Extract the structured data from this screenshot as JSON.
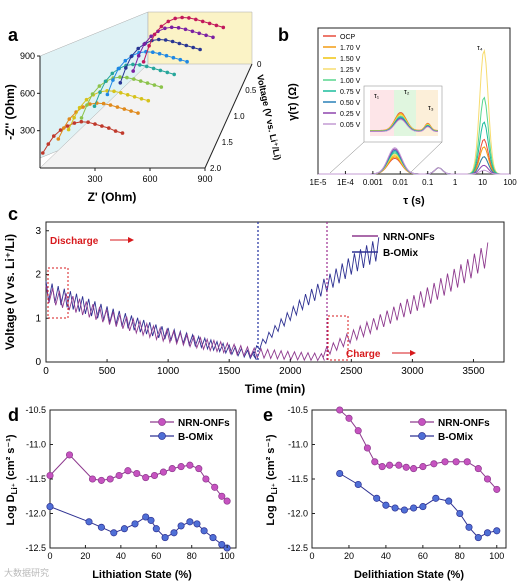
{
  "panel_labels": [
    "a",
    "b",
    "c",
    "d",
    "e"
  ],
  "watermark": "大数据研究",
  "colors": {
    "nrn": "#8e3a8e",
    "nrn_marker": "#c653c0",
    "bomix": "#2e3192",
    "bomix_marker": "#4f6fd6",
    "annotation_red": "#d7191c",
    "c_blue_vline": "#1f2ea0",
    "c_purple_vline": "#9b2d8f"
  },
  "chart_data": [
    {
      "panel": "a",
      "type": "scatter",
      "title": "",
      "xlabel": "Z' (Ohm)",
      "ylabel": "-Z'' (Ohm)",
      "zlabel": "Voltage (V vs. Li⁺/Li)",
      "x_ticks": [
        "300",
        "600",
        "900"
      ],
      "y_ticks": [
        "300",
        "600",
        "900"
      ],
      "z_ticks": [
        "0",
        "0.5",
        "1.0",
        "1.5",
        "2.0"
      ],
      "series": [
        {
          "voltage": 2.0,
          "color": "#c0392b",
          "x": [
            20,
            60,
            100,
            150,
            200,
            250,
            300,
            350,
            400,
            450,
            500,
            550,
            600
          ],
          "y": [
            30,
            120,
            200,
            260,
            300,
            330,
            345,
            340,
            320,
            300,
            280,
            250,
            230
          ]
        },
        {
          "voltage": 1.7,
          "color": "#e08a1c",
          "x": [
            20,
            60,
            100,
            150,
            200,
            250,
            300,
            350,
            400,
            450,
            500,
            550,
            600
          ],
          "y": [
            30,
            140,
            230,
            300,
            350,
            380,
            390,
            385,
            370,
            350,
            330,
            310,
            290
          ]
        },
        {
          "voltage": 1.5,
          "color": "#d6c21a",
          "x": [
            20,
            60,
            100,
            150,
            200,
            250,
            300,
            350,
            400,
            450,
            500,
            550,
            600
          ],
          "y": [
            30,
            150,
            250,
            330,
            380,
            410,
            420,
            415,
            400,
            380,
            360,
            340,
            320
          ]
        },
        {
          "voltage": 1.25,
          "color": "#8bc34a",
          "x": [
            20,
            60,
            100,
            150,
            200,
            250,
            300,
            350,
            400,
            450,
            500,
            550,
            600
          ],
          "y": [
            30,
            160,
            270,
            350,
            400,
            430,
            440,
            435,
            420,
            400,
            380,
            360,
            340
          ]
        },
        {
          "voltage": 1.0,
          "color": "#26a69a",
          "x": [
            20,
            60,
            100,
            150,
            200,
            250,
            300,
            350,
            400,
            450,
            500,
            550,
            600
          ],
          "y": [
            30,
            170,
            280,
            360,
            410,
            440,
            450,
            445,
            430,
            410,
            390,
            370,
            350
          ]
        },
        {
          "voltage": 0.75,
          "color": "#1e88e5",
          "x": [
            20,
            60,
            100,
            150,
            200,
            250,
            300,
            350,
            400,
            450,
            500,
            550,
            600
          ],
          "y": [
            30,
            175,
            290,
            370,
            420,
            450,
            460,
            455,
            440,
            420,
            400,
            380,
            360
          ]
        },
        {
          "voltage": 0.5,
          "color": "#283593",
          "x": [
            20,
            60,
            100,
            150,
            200,
            250,
            300,
            350,
            400,
            450,
            500,
            550,
            600
          ],
          "y": [
            30,
            180,
            295,
            375,
            425,
            455,
            465,
            460,
            445,
            425,
            405,
            385,
            365
          ]
        },
        {
          "voltage": 0.25,
          "color": "#7b1fa2",
          "x": [
            20,
            60,
            100,
            150,
            200,
            250,
            300,
            350,
            400,
            450,
            500,
            550,
            600
          ],
          "y": [
            30,
            185,
            300,
            380,
            430,
            460,
            470,
            465,
            450,
            430,
            410,
            390,
            370
          ]
        },
        {
          "voltage": 0.05,
          "color": "#c2185b",
          "x": [
            20,
            60,
            100,
            150,
            200,
            250,
            300,
            350,
            400,
            450,
            500,
            550,
            600
          ],
          "y": [
            30,
            190,
            305,
            385,
            435,
            465,
            475,
            470,
            455,
            435,
            415,
            395,
            375
          ]
        }
      ]
    },
    {
      "panel": "b",
      "type": "line",
      "title": "",
      "xlabel": "τ (s)",
      "ylabel": "γ(τ) (Ω)",
      "x_scale": "log",
      "x_ticks": [
        "1E-5",
        "1E-4",
        "0.001",
        "0.01",
        "0.1",
        "1",
        "10",
        "100"
      ],
      "legend": [
        "OCP",
        "1.70 V",
        "1.50 V",
        "1.25 V",
        "1.00 V",
        "0.75 V",
        "0.50 V",
        "0.25 V",
        "0.05 V"
      ],
      "legend_colors": [
        "#e74c3c",
        "#f39c12",
        "#f1c40f",
        "#f7dc6f",
        "#58d68d",
        "#1abc9c",
        "#2980b9",
        "#8e44ad",
        "#c39bd3"
      ],
      "peak_labels": [
        "τ₁",
        "τ₂",
        "τ₃",
        "τ₄"
      ],
      "peaks_tau": [
        0.002,
        0.01,
        0.2,
        10
      ],
      "peak_heights": [
        0.28,
        0.22,
        0.14,
        1.0,
        0.62,
        0.42,
        0.14,
        0.07,
        0.03,
        0.02,
        0.02,
        0.02
      ]
    },
    {
      "panel": "c",
      "type": "line",
      "title": "",
      "xlabel": "Time (min)",
      "ylabel": "Voltage (V vs. Li⁺/Li)",
      "xlim": [
        0,
        3750
      ],
      "ylim": [
        0,
        3.2
      ],
      "x_ticks": [
        0,
        500,
        1000,
        1500,
        2000,
        2500,
        3000,
        3500
      ],
      "y_ticks": [
        0,
        1,
        2,
        3
      ],
      "annotations": {
        "discharge": "Discharge",
        "charge": "Charge"
      },
      "legend": [
        "NRN-ONFs",
        "B-OMix"
      ],
      "series": [
        {
          "name": "B-OMix",
          "color": "#2e3192",
          "discharge_end_min": 1700,
          "charge_end_min": 2700,
          "discharge_base": [
            [
              0,
              1.4
            ],
            [
              200,
              1.2
            ],
            [
              500,
              0.9
            ],
            [
              900,
              0.55
            ],
            [
              1300,
              0.3
            ],
            [
              1700,
              0.05
            ]
          ],
          "charge_base": [
            [
              1700,
              0.15
            ],
            [
              1900,
              0.7
            ],
            [
              2100,
              1.2
            ],
            [
              2300,
              1.6
            ],
            [
              2500,
              2.0
            ],
            [
              2700,
              2.3
            ]
          ],
          "pulse_amplitude_discharge": 0.45,
          "pulse_amplitude_charge": 0.55,
          "pulse_period_min": 50
        },
        {
          "name": "NRN-ONFs",
          "color": "#8e3a8e",
          "discharge_end_min": 2270,
          "charge_end_min": 3620,
          "discharge_base": [
            [
              0,
              1.35
            ],
            [
              200,
              1.15
            ],
            [
              500,
              0.85
            ],
            [
              900,
              0.5
            ],
            [
              1300,
              0.27
            ],
            [
              1700,
              0.1
            ],
            [
              2000,
              0.05
            ],
            [
              2270,
              0.03
            ]
          ],
          "charge_base": [
            [
              2270,
              0.1
            ],
            [
              2500,
              0.45
            ],
            [
              2800,
              0.85
            ],
            [
              3100,
              1.25
            ],
            [
              3400,
              1.75
            ],
            [
              3620,
              2.2
            ]
          ],
          "pulse_amplitude_discharge": 0.4,
          "pulse_amplitude_charge": 0.6,
          "pulse_period_min": 55
        }
      ]
    },
    {
      "panel": "d",
      "type": "scatter",
      "title": "",
      "xlabel": "Lithiation State (%)",
      "ylabel": "Log D_Li+ (cm² s⁻¹)",
      "xlim": [
        0,
        105
      ],
      "ylim": [
        -12.5,
        -10.5
      ],
      "x_ticks": [
        0,
        20,
        40,
        60,
        80,
        100
      ],
      "y_ticks": [
        -10.5,
        -11.0,
        -11.5,
        -12.0,
        -12.5
      ],
      "legend": [
        "NRN-ONFs",
        "B-OMix"
      ],
      "series": [
        {
          "name": "NRN-ONFs",
          "color": "#8e3a8e",
          "x": [
            0,
            11,
            24,
            29,
            34,
            39,
            44,
            49,
            54,
            59,
            64,
            69,
            74,
            79,
            84,
            88,
            93,
            97,
            100
          ],
          "y": [
            -11.45,
            -11.15,
            -11.5,
            -11.52,
            -11.5,
            -11.45,
            -11.38,
            -11.42,
            -11.48,
            -11.45,
            -11.4,
            -11.35,
            -11.32,
            -11.3,
            -11.35,
            -11.5,
            -11.62,
            -11.75,
            -11.82
          ]
        },
        {
          "name": "B-OMix",
          "color": "#2e3192",
          "x": [
            0,
            22,
            29,
            36,
            42,
            48,
            54,
            57,
            60,
            65,
            70,
            74,
            79,
            83,
            87,
            92,
            97,
            100
          ],
          "y": [
            -11.9,
            -12.12,
            -12.2,
            -12.28,
            -12.22,
            -12.15,
            -12.05,
            -12.1,
            -12.22,
            -12.35,
            -12.28,
            -12.18,
            -12.12,
            -12.15,
            -12.25,
            -12.35,
            -12.45,
            -12.5
          ]
        }
      ]
    },
    {
      "panel": "e",
      "type": "scatter",
      "title": "",
      "xlabel": "Delithiation State (%)",
      "ylabel": "Log D_Li+ (cm² s⁻¹)",
      "xlim": [
        0,
        105
      ],
      "ylim": [
        -12.5,
        -10.5
      ],
      "x_ticks": [
        0,
        20,
        40,
        60,
        80,
        100
      ],
      "y_ticks": [
        -10.5,
        -11.0,
        -11.5,
        -12.0,
        -12.5
      ],
      "legend": [
        "NRN-ONFs",
        "B-OMix"
      ],
      "series": [
        {
          "name": "NRN-ONFs",
          "color": "#8e3a8e",
          "x": [
            15,
            20,
            25,
            30,
            34,
            38,
            42,
            47,
            51,
            55,
            60,
            66,
            72,
            78,
            84,
            90,
            95,
            100
          ],
          "y": [
            -10.5,
            -10.62,
            -10.8,
            -11.05,
            -11.25,
            -11.32,
            -11.3,
            -11.3,
            -11.33,
            -11.35,
            -11.32,
            -11.28,
            -11.25,
            -11.25,
            -11.25,
            -11.35,
            -11.5,
            -11.65
          ]
        },
        {
          "name": "B-OMix",
          "color": "#2e3192",
          "x": [
            15,
            25,
            35,
            40,
            45,
            50,
            55,
            60,
            67,
            74,
            80,
            85,
            90,
            95,
            100
          ],
          "y": [
            -11.42,
            -11.58,
            -11.78,
            -11.88,
            -11.92,
            -11.95,
            -11.92,
            -11.9,
            -11.78,
            -11.82,
            -12.0,
            -12.2,
            -12.35,
            -12.28,
            -12.25
          ]
        }
      ]
    }
  ]
}
